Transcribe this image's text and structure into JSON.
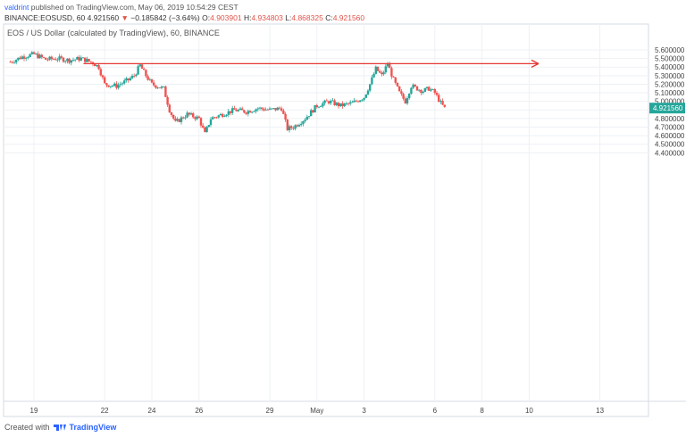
{
  "header": {
    "author": "valdrint",
    "published_text": "published on TradingView.com, May 06, 2019 10:54:29 CEST",
    "symbol": "BINANCE:EOSUSD, 60",
    "last": "4.921560",
    "arrow": "▼",
    "change": "−0.185842 (−3.64%)",
    "open_label": "O:",
    "open": "4.903901",
    "high_label": "H:",
    "high": "4.934803",
    "low_label": "L:",
    "low": "4.868325",
    "close_label": "C:",
    "close": "4.921560"
  },
  "chart_title": "EOS / US Dollar (calculated by TradingView), 60, BINANCE",
  "footer": {
    "created_with": "Created with",
    "brand": "TradingView"
  },
  "colors": {
    "up": "#26a69a",
    "down": "#ef5350",
    "line": "#e53935",
    "grid": "#eef1f5",
    "price_tag": "#26a69a"
  },
  "chart_data": {
    "type": "candlestick",
    "ylim": [
      4.35,
      5.7
    ],
    "y_ticks": [
      "5.600000",
      "5.500000",
      "5.400000",
      "5.300000",
      "5.200000",
      "5.100000",
      "5.000000",
      "4.900000",
      "4.800000",
      "4.700000",
      "4.600000",
      "4.500000",
      "4.400000"
    ],
    "x_ticks": [
      "19",
      "22",
      "24",
      "26",
      "29",
      "May",
      "3",
      "6",
      "8",
      "10",
      "13"
    ],
    "last_price_label": "4.921560",
    "horizontal_line": {
      "y": 5.44,
      "from_label": "21",
      "to_label": "10"
    },
    "close_path": [
      [
        "Apr 18 00:00",
        5.46
      ],
      [
        "Apr 18 12:00",
        5.52
      ],
      [
        "Apr 19 00:00",
        5.55
      ],
      [
        "Apr 19 12:00",
        5.49
      ],
      [
        "Apr 20 00:00",
        5.5
      ],
      [
        "Apr 20 12:00",
        5.48
      ],
      [
        "Apr 21 00:00",
        5.5
      ],
      [
        "Apr 21 12:00",
        5.45
      ],
      [
        "Apr 21 18:00",
        5.4
      ],
      [
        "Apr 22 00:00",
        5.2
      ],
      [
        "Apr 22 12:00",
        5.18
      ],
      [
        "Apr 23 00:00",
        5.25
      ],
      [
        "Apr 23 06:00",
        5.3
      ],
      [
        "Apr 23 12:00",
        5.42
      ],
      [
        "Apr 23 18:00",
        5.3
      ],
      [
        "Apr 24 00:00",
        5.2
      ],
      [
        "Apr 24 12:00",
        5.15
      ],
      [
        "Apr 24 18:00",
        4.9
      ],
      [
        "Apr 25 00:00",
        4.75
      ],
      [
        "Apr 25 12:00",
        4.85
      ],
      [
        "Apr 26 00:00",
        4.8
      ],
      [
        "Apr 26 06:00",
        4.62
      ],
      [
        "Apr 26 12:00",
        4.8
      ],
      [
        "Apr 27 00:00",
        4.85
      ],
      [
        "Apr 27 12:00",
        4.9
      ],
      [
        "Apr 28 00:00",
        4.88
      ],
      [
        "Apr 28 12:00",
        4.92
      ],
      [
        "Apr 29 00:00",
        4.9
      ],
      [
        "Apr 29 12:00",
        4.92
      ],
      [
        "Apr 29 18:00",
        4.68
      ],
      [
        "Apr 30 00:00",
        4.7
      ],
      [
        "Apr 30 12:00",
        4.8
      ],
      [
        "May 01 00:00",
        4.95
      ],
      [
        "May 01 12:00",
        5.0
      ],
      [
        "May 02 00:00",
        4.95
      ],
      [
        "May 02 12:00",
        4.98
      ],
      [
        "May 03 00:00",
        5.05
      ],
      [
        "May 03 06:00",
        5.2
      ],
      [
        "May 03 12:00",
        5.38
      ],
      [
        "May 03 18:00",
        5.3
      ],
      [
        "May 04 00:00",
        5.44
      ],
      [
        "May 04 06:00",
        5.25
      ],
      [
        "May 04 12:00",
        5.1
      ],
      [
        "May 04 18:00",
        5.0
      ],
      [
        "May 05 00:00",
        5.18
      ],
      [
        "May 05 12:00",
        5.12
      ],
      [
        "May 05 18:00",
        5.15
      ],
      [
        "May 06 00:00",
        5.1
      ],
      [
        "May 06 06:00",
        4.98
      ],
      [
        "May 06 10:00",
        4.92
      ]
    ]
  }
}
